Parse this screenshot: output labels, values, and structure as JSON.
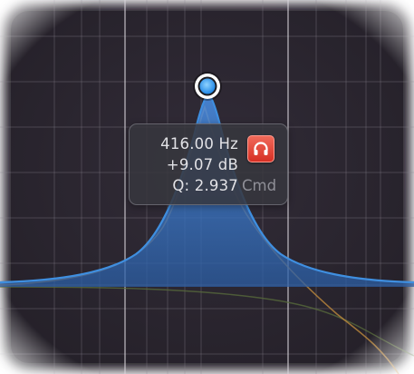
{
  "band_tooltip": {
    "frequency": "416.00 Hz",
    "gain": "+9.07 dB",
    "q": "Q: 2.937",
    "modifier_hint": "Cmd",
    "solo_icon": "headphones-icon"
  },
  "colors": {
    "background": "#2b2630",
    "grid": "#8a8490",
    "curve": "#3f8fe0",
    "fill": "#2f62a8",
    "handle": "#3fa6ff",
    "secondary_curve": "#c8903e",
    "dim_curve": "#5a6e3c",
    "solo_button": "#e0392c"
  }
}
